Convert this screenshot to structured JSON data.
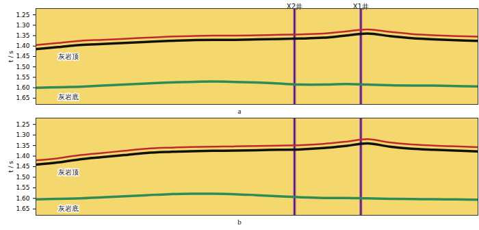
{
  "chart_data": [
    {
      "type": "line",
      "caption": "a",
      "ylabel": "t / s",
      "tick_labels": "y",
      "xlim": [
        0,
        100
      ],
      "ylim": [
        1.68,
        1.22
      ],
      "yticks": [
        1.25,
        {
          "value": 1.3,
          "label": "1.30"
        },
        1.35,
        {
          "value": 1.4,
          "label": "1.40"
        },
        1.45,
        {
          "value": 1.5,
          "label": "1.50"
        },
        1.55,
        {
          "value": 1.6,
          "label": "1.60"
        },
        1.65
      ],
      "x": [
        0,
        5,
        10,
        15,
        20,
        25,
        30,
        35,
        40,
        45,
        50,
        55,
        60,
        65,
        70,
        75,
        80,
        85,
        90,
        95,
        100
      ],
      "series": [
        {
          "color": "#c0282d",
          "values": [
            1.395,
            1.385,
            1.375,
            1.37,
            1.365,
            1.36,
            1.355,
            1.352,
            1.35,
            1.35,
            1.348,
            1.346,
            1.344,
            1.34,
            1.33,
            1.32,
            1.332,
            1.342,
            1.348,
            1.352,
            1.355
          ]
        },
        {
          "name": "灰岩顶",
          "color": "#111111",
          "values": [
            1.415,
            1.405,
            1.395,
            1.39,
            1.385,
            1.38,
            1.375,
            1.372,
            1.37,
            1.37,
            1.368,
            1.366,
            1.364,
            1.36,
            1.35,
            1.34,
            1.352,
            1.362,
            1.368,
            1.372,
            1.375
          ]
        },
        {
          "name": "灰岩底",
          "color": "#2e8b57",
          "values": [
            1.6,
            1.598,
            1.595,
            1.59,
            1.585,
            1.58,
            1.575,
            1.572,
            1.57,
            1.572,
            1.575,
            1.58,
            1.585,
            1.585,
            1.582,
            1.585,
            1.588,
            1.59,
            1.59,
            1.592,
            1.594
          ]
        }
      ],
      "wells": [
        {
          "name": "X2井",
          "x": 58.5
        },
        {
          "name": "X1井",
          "x": 73.5
        }
      ]
    },
    {
      "type": "line",
      "caption": "b",
      "ylabel": "t / s",
      "tick_labels": "y",
      "xlim": [
        0,
        100
      ],
      "ylim": [
        1.68,
        1.22
      ],
      "yticks": [
        1.25,
        {
          "value": 1.3,
          "label": "1.30"
        },
        1.35,
        {
          "value": 1.4,
          "label": "1.40"
        },
        1.45,
        {
          "value": 1.5,
          "label": "1.50"
        },
        1.55,
        {
          "value": 1.6,
          "label": "1.60"
        },
        1.65
      ],
      "x": [
        0,
        5,
        10,
        15,
        20,
        25,
        30,
        35,
        40,
        45,
        50,
        55,
        60,
        65,
        70,
        75,
        80,
        85,
        90,
        95,
        100
      ],
      "series": [
        {
          "color": "#c0282d",
          "values": [
            1.42,
            1.41,
            1.395,
            1.385,
            1.375,
            1.365,
            1.36,
            1.357,
            1.355,
            1.354,
            1.352,
            1.35,
            1.348,
            1.342,
            1.332,
            1.32,
            1.335,
            1.345,
            1.35,
            1.354,
            1.358
          ]
        },
        {
          "name": "灰岩顶",
          "color": "#111111",
          "values": [
            1.44,
            1.43,
            1.415,
            1.405,
            1.395,
            1.385,
            1.38,
            1.377,
            1.375,
            1.374,
            1.372,
            1.37,
            1.368,
            1.362,
            1.352,
            1.34,
            1.355,
            1.365,
            1.37,
            1.374,
            1.378
          ]
        },
        {
          "name": "灰岩底",
          "color": "#2e8b57",
          "values": [
            1.605,
            1.602,
            1.6,
            1.595,
            1.59,
            1.585,
            1.58,
            1.578,
            1.578,
            1.58,
            1.585,
            1.59,
            1.595,
            1.598,
            1.598,
            1.6,
            1.602,
            1.603,
            1.604,
            1.605,
            1.606
          ]
        }
      ],
      "wells": [
        {
          "x": 58.5
        },
        {
          "x": 73.5
        }
      ]
    }
  ]
}
